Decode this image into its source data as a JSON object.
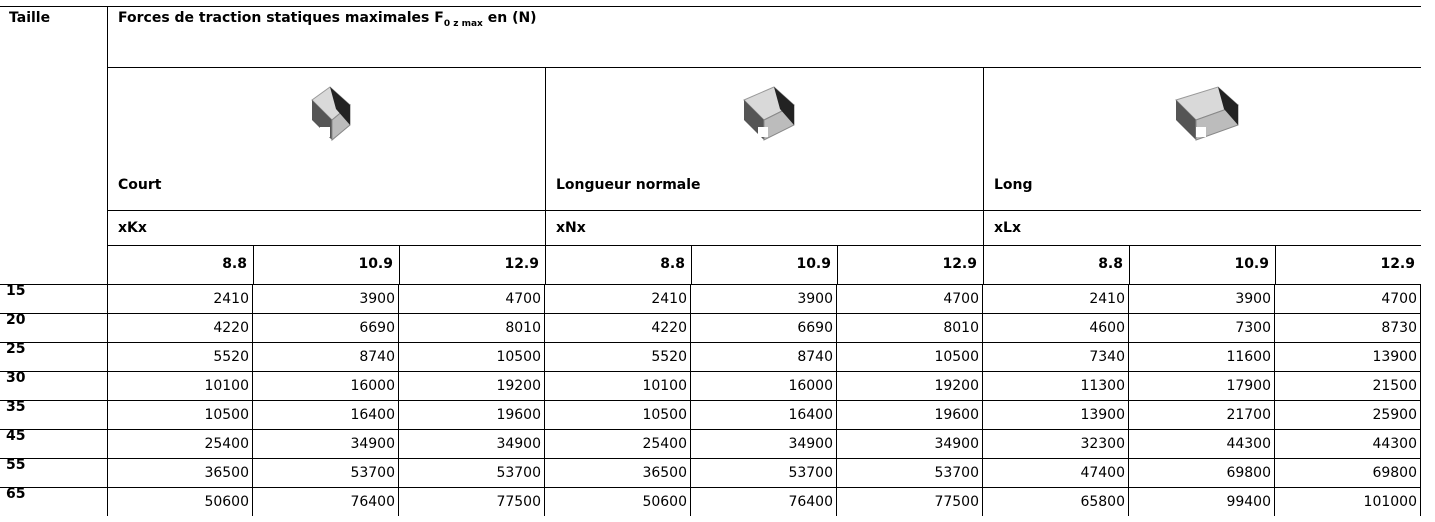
{
  "header": {
    "taille": "Taille",
    "title": {
      "before": "Forces de traction statiques maximales F",
      "sub": "0 z max",
      "after": " en (N)"
    }
  },
  "groups": [
    {
      "name": "Court",
      "code": "xKx",
      "grades": [
        "8.8",
        "10.9",
        "12.9"
      ]
    },
    {
      "name": "Longueur normale",
      "code": "xNx",
      "grades": [
        "8.8",
        "10.9",
        "12.9"
      ]
    },
    {
      "name": "Long",
      "code": "xLx",
      "grades": [
        "8.8",
        "10.9",
        "12.9"
      ]
    }
  ],
  "rows": [
    {
      "size": "15",
      "values": [
        2410,
        3900,
        4700,
        2410,
        3900,
        4700,
        2410,
        3900,
        4700
      ]
    },
    {
      "size": "20",
      "values": [
        4220,
        6690,
        8010,
        4220,
        6690,
        8010,
        4600,
        7300,
        8730
      ]
    },
    {
      "size": "25",
      "values": [
        5520,
        8740,
        10500,
        5520,
        8740,
        10500,
        7340,
        11600,
        13900
      ]
    },
    {
      "size": "30",
      "values": [
        10100,
        16000,
        19200,
        10100,
        16000,
        19200,
        11300,
        17900,
        21500
      ]
    },
    {
      "size": "35",
      "values": [
        10500,
        16400,
        19600,
        10500,
        16400,
        19600,
        13900,
        21700,
        25900
      ]
    },
    {
      "size": "45",
      "values": [
        25400,
        34900,
        34900,
        25400,
        34900,
        34900,
        32300,
        44300,
        44300
      ]
    },
    {
      "size": "55",
      "values": [
        36500,
        53700,
        53700,
        36500,
        53700,
        53700,
        47400,
        69800,
        69800
      ]
    },
    {
      "size": "65",
      "values": [
        50600,
        76400,
        77500,
        50600,
        76400,
        77500,
        65800,
        99400,
        101000
      ]
    }
  ]
}
